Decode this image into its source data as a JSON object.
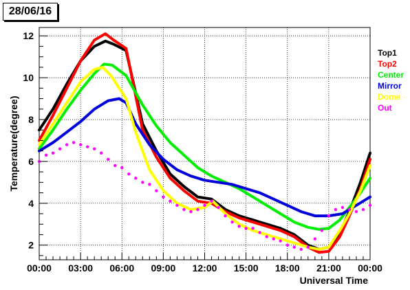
{
  "date_label": "28/06/16",
  "colors": {
    "Top1": "#000000",
    "Top2": "#ff0000",
    "Center": "#00ee00",
    "Mirror": "#0000dd",
    "Dome": "#ffff00",
    "Out": "#ff00ff"
  },
  "chart_data": {
    "type": "line",
    "title": "",
    "xlabel": "Universal Time",
    "ylabel": "Temperature(degree)",
    "x_unit": "hours UT (00:00 to 24:00)",
    "xlim": [
      0,
      24
    ],
    "ylim": [
      1.3,
      12.4
    ],
    "x_ticks": [
      0,
      3,
      6,
      9,
      12,
      15,
      18,
      21,
      24
    ],
    "x_tick_labels": [
      "00:00",
      "03:00",
      "06:00",
      "09:00",
      "12:00",
      "15:00",
      "18:00",
      "21:00",
      "00:00"
    ],
    "y_ticks": [
      2,
      4,
      6,
      8,
      10,
      12
    ],
    "y_tick_labels": [
      "2",
      "4",
      "6",
      "8",
      "10",
      "12"
    ],
    "grid": true,
    "legend_position": "right",
    "series": [
      {
        "name": "Top1",
        "x": [
          0,
          1,
          2,
          3,
          4,
          4.8,
          5.4,
          6.3,
          7.5,
          8.5,
          9.5,
          10.5,
          11.5,
          12.5,
          13.5,
          14.5,
          15.5,
          16.5,
          17.5,
          18.5,
          19.5,
          20.3,
          21,
          21.8,
          22.5,
          23.3,
          24
        ],
        "y": [
          7.5,
          8.5,
          9.7,
          10.8,
          11.5,
          11.75,
          11.6,
          11.3,
          7.8,
          6.5,
          5.4,
          4.8,
          4.3,
          4.2,
          3.7,
          3.4,
          3.2,
          3.0,
          2.8,
          2.5,
          2.0,
          1.8,
          1.9,
          2.6,
          3.6,
          5.0,
          6.4
        ]
      },
      {
        "name": "Top2",
        "x": [
          0,
          1,
          2,
          3,
          4,
          4.8,
          5.4,
          6.3,
          7.5,
          8.5,
          9.5,
          10.5,
          11.5,
          12.5,
          13.5,
          14.5,
          15.5,
          16.5,
          17.5,
          18.5,
          19.5,
          20.3,
          21,
          21.8,
          22.5,
          23.3,
          24
        ],
        "y": [
          7.0,
          8.2,
          9.5,
          10.8,
          11.8,
          12.1,
          11.8,
          11.4,
          7.5,
          6.2,
          5.2,
          4.6,
          4.1,
          4.0,
          3.6,
          3.3,
          3.1,
          2.9,
          2.7,
          2.4,
          1.9,
          1.65,
          1.7,
          2.4,
          3.4,
          4.7,
          6.1
        ]
      },
      {
        "name": "Center",
        "x": [
          0,
          1,
          2,
          3,
          4,
          4.7,
          5.3,
          6.3,
          7.5,
          8.5,
          9.5,
          10.5,
          11.5,
          12.5,
          13.5,
          14.5,
          15.5,
          16.5,
          17.5,
          18.5,
          19.5,
          20.3,
          21,
          21.8,
          22.5,
          23.3,
          24
        ],
        "y": [
          6.6,
          7.5,
          8.5,
          9.4,
          10.2,
          10.65,
          10.6,
          10.1,
          8.7,
          7.7,
          6.9,
          6.3,
          5.7,
          5.3,
          5.0,
          4.7,
          4.3,
          3.9,
          3.5,
          3.1,
          2.85,
          2.75,
          2.8,
          3.2,
          3.8,
          4.5,
          5.2
        ]
      },
      {
        "name": "Mirror",
        "x": [
          0,
          1,
          2,
          3,
          4,
          5,
          5.8,
          6.3,
          7,
          8,
          9,
          10,
          11,
          12,
          13,
          14,
          15,
          16,
          17,
          18,
          19,
          20,
          21,
          22,
          23,
          24
        ],
        "y": [
          6.5,
          6.9,
          7.4,
          7.9,
          8.5,
          8.9,
          9.0,
          8.8,
          7.8,
          6.8,
          6.1,
          5.6,
          5.3,
          5.1,
          5.0,
          4.9,
          4.7,
          4.5,
          4.2,
          3.9,
          3.6,
          3.4,
          3.4,
          3.5,
          3.9,
          4.3
        ]
      },
      {
        "name": "Dome",
        "x": [
          0,
          1,
          2,
          3,
          4,
          4.6,
          5.2,
          5.9,
          6.3,
          7,
          8,
          9,
          10,
          11,
          12,
          12.6,
          13.5,
          14.5,
          15.5,
          16.5,
          17.5,
          18.5,
          19.5,
          20.3,
          21,
          21.8,
          22.5,
          23.3,
          24
        ],
        "y": [
          6.8,
          7.8,
          8.8,
          9.8,
          10.4,
          10.5,
          10.1,
          9.4,
          9.0,
          7.4,
          5.6,
          4.6,
          4.0,
          3.7,
          3.8,
          4.1,
          3.5,
          3.0,
          2.7,
          2.5,
          2.3,
          2.1,
          1.9,
          1.8,
          1.9,
          2.7,
          3.5,
          4.6,
          5.8
        ]
      },
      {
        "name": "Out",
        "x": [
          0,
          0.5,
          1,
          1.5,
          2,
          2.5,
          3,
          3.5,
          4,
          4.5,
          5,
          5.5,
          6,
          6.5,
          7,
          7.5,
          8,
          8.5,
          9,
          9.5,
          10,
          10.5,
          11,
          11.5,
          12,
          12.5,
          13,
          13.5,
          14,
          14.5,
          15,
          15.5,
          16,
          16.5,
          17,
          17.5,
          18,
          18.5,
          19,
          19.5,
          20,
          20.5,
          21,
          21.5,
          22,
          22.5,
          23,
          23.5,
          24
        ],
        "y": [
          6.0,
          6.3,
          6.4,
          6.6,
          6.8,
          6.9,
          6.8,
          6.7,
          6.6,
          6.4,
          6.1,
          5.8,
          5.7,
          5.4,
          5.2,
          5.0,
          4.9,
          4.6,
          4.3,
          4.1,
          3.9,
          3.7,
          3.6,
          3.7,
          3.9,
          4.1,
          3.8,
          3.4,
          3.1,
          2.9,
          2.8,
          2.8,
          2.6,
          2.4,
          2.3,
          2.2,
          2.0,
          1.9,
          1.8,
          1.9,
          2.3,
          2.7,
          3.4,
          3.7,
          3.8,
          3.7,
          3.6,
          3.7,
          3.9
        ]
      }
    ]
  }
}
